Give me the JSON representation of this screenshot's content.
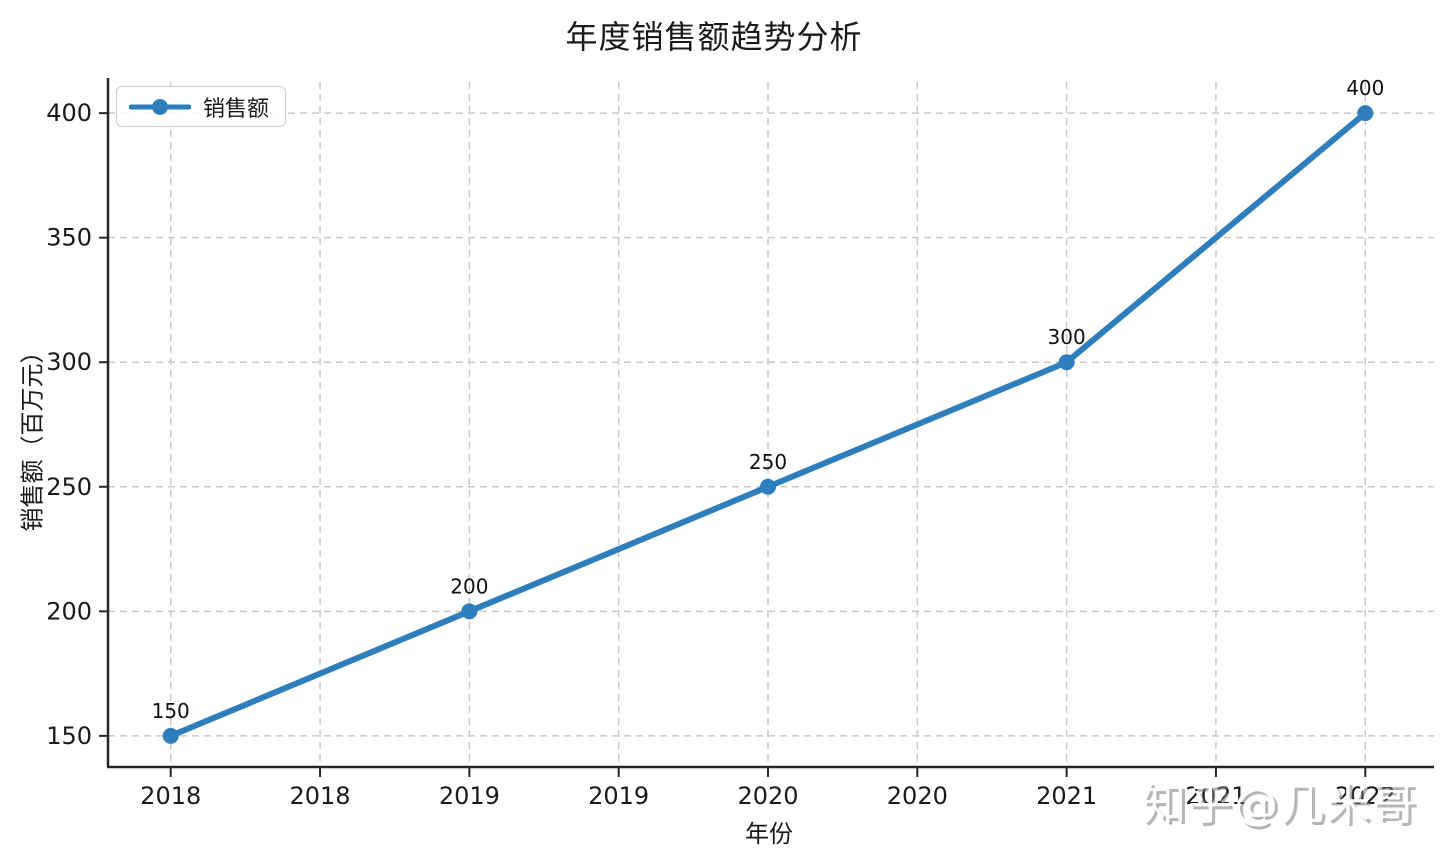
{
  "title": "年度销售额趋势分析",
  "watermark": "知乎@几米哥",
  "legend": {
    "label": "销售额"
  },
  "colors": {
    "series_blue": "#2e7ebc",
    "grid": "#c9c9c9",
    "spine": "#262626",
    "text": "#1a1a1a"
  },
  "chart_data": {
    "type": "line",
    "title": "年度销售额趋势分析",
    "xlabel": "年份",
    "ylabel": "销售额（百万元）",
    "series": [
      {
        "name": "销售额",
        "color": "#2e7ebc",
        "x": [
          2018,
          2019,
          2020,
          2021,
          2022
        ],
        "values": [
          150,
          200,
          250,
          300,
          400
        ],
        "point_labels": [
          "150",
          "200",
          "250",
          "300",
          "400"
        ]
      }
    ],
    "x_tick_positions": [
      2018,
      2018.5,
      2019,
      2019.5,
      2020,
      2020.5,
      2021,
      2021.5,
      2022
    ],
    "x_tick_labels": [
      "2018",
      "2018",
      "2019",
      "2019",
      "2020",
      "2020",
      "2021",
      "2021",
      "2022"
    ],
    "y_ticks": [
      150,
      200,
      250,
      300,
      350,
      400
    ],
    "xlim": [
      2017.79,
      2022.21
    ],
    "ylim": [
      137.5,
      412.5
    ],
    "grid": true,
    "grid_style": "dashed",
    "legend_position": "upper left",
    "marker": "circle",
    "line_width": 6
  }
}
